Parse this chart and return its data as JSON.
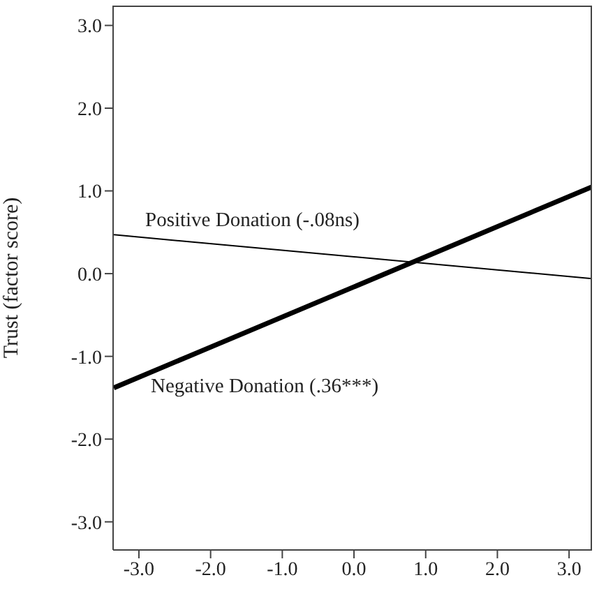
{
  "chart_data": {
    "type": "line",
    "ylabel": "Trust (factor score)",
    "x": [
      -3.35,
      3.32
    ],
    "series": [
      {
        "color": "#000000",
        "values": [
          0.47,
          -0.06
        ]
      },
      {
        "color": "#000000",
        "values": [
          -1.38,
          1.05
        ]
      }
    ],
    "xlim": [
      -3.36,
      3.32
    ],
    "ylim": [
      -3.34,
      3.24
    ],
    "xticks": [
      {
        "value": -3,
        "label": "-3.0"
      },
      {
        "value": -2,
        "label": "-2.0"
      },
      {
        "value": -1,
        "label": "-1.0"
      },
      {
        "value": 0,
        "label": "0.0"
      },
      {
        "value": 1,
        "label": "1.0"
      },
      {
        "value": 2,
        "label": "2.0"
      },
      {
        "value": 3,
        "label": "3.0"
      }
    ],
    "yticks": [
      {
        "value": -3,
        "label": "-3.0"
      },
      {
        "value": -2,
        "label": "-2.0"
      },
      {
        "value": -1,
        "label": "-1.0"
      },
      {
        "value": 0,
        "label": "0.0"
      },
      {
        "value": 1,
        "label": "1.0"
      },
      {
        "value": 2,
        "label": "2.0"
      },
      {
        "value": 3,
        "label": "3.0"
      }
    ],
    "annotations": [
      "Positive Donation (-.08ns)",
      "Negative Donation (.36***)"
    ],
    "grid": false,
    "legend": false,
    "marker": "none",
    "line_style": "solid"
  }
}
